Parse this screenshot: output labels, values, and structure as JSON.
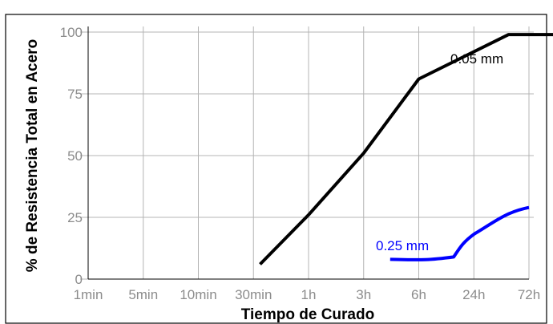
{
  "chart_data": {
    "type": "line",
    "title": "",
    "xlabel": "Tiempo de Curado",
    "ylabel": "% de Resistencia Total en Acero",
    "x_ticks": [
      "1min",
      "5min",
      "10min",
      "30min",
      "1h",
      "3h",
      "6h",
      "24h",
      "72h"
    ],
    "y_ticks": [
      "0",
      "25",
      "50",
      "75",
      "100"
    ],
    "ylim": [
      0,
      100
    ],
    "grid": true,
    "series": [
      {
        "name": "0.05 mm",
        "color": "#000000",
        "points": [
          {
            "x": "30min",
            "y": 6
          },
          {
            "x": "1h",
            "y": 26
          },
          {
            "x": "3h",
            "y": 51
          },
          {
            "x": "6h",
            "y": 81
          },
          {
            "x": "24h",
            "y": 99
          },
          {
            "x": "72h",
            "y": 99
          }
        ]
      },
      {
        "name": "0.25 mm",
        "color": "#0000ff",
        "points": [
          {
            "x": "6h",
            "y": 8
          },
          {
            "x": "24h",
            "y": 19
          },
          {
            "x": "72h",
            "y": 29
          }
        ]
      }
    ]
  }
}
